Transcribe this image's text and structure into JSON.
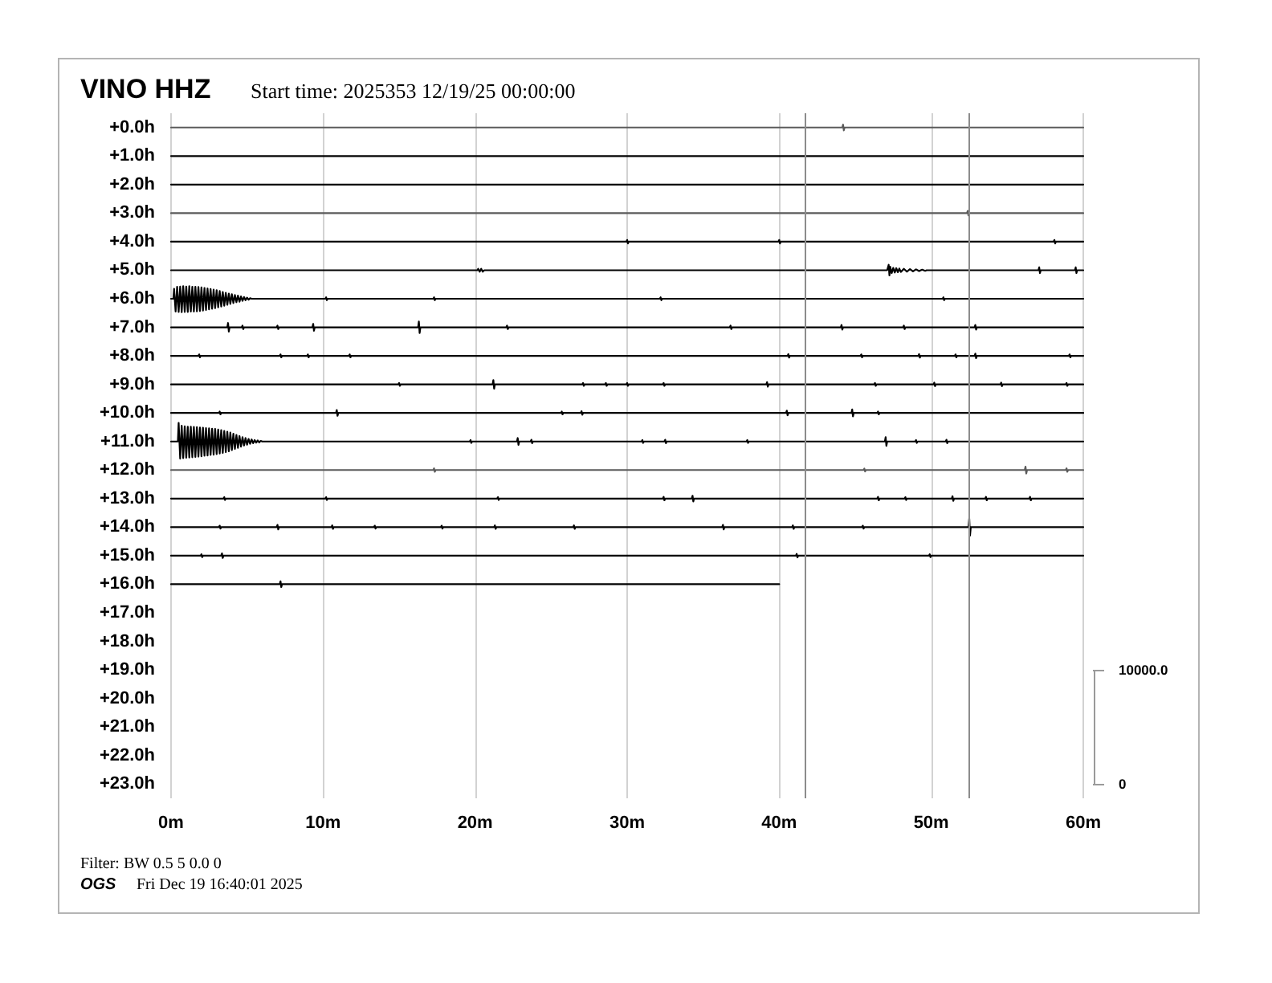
{
  "chart_data": {
    "type": "line",
    "title": "VINO HHZ",
    "subtitle": "Start time: 2025353 12/19/25 00:00:00",
    "annotations": [
      "Filter: BW 0.5 5 0.0 0",
      "OGS",
      "Fri Dec 19 16:40:01 2025"
    ],
    "xlim": [
      0,
      60
    ],
    "xticks": [
      {
        "value": 0,
        "label": "0m"
      },
      {
        "value": 10,
        "label": "10m"
      },
      {
        "value": 20,
        "label": "20m"
      },
      {
        "value": 30,
        "label": "30m"
      },
      {
        "value": 40,
        "label": "40m"
      },
      {
        "value": 50,
        "label": "50m"
      },
      {
        "value": 60,
        "label": "60m"
      }
    ],
    "ylim": [
      23.5,
      -0.5
    ],
    "yticks": [
      {
        "value": 0,
        "label": "+0.0h"
      },
      {
        "value": 1,
        "label": "+1.0h"
      },
      {
        "value": 2,
        "label": "+2.0h"
      },
      {
        "value": 3,
        "label": "+3.0h"
      },
      {
        "value": 4,
        "label": "+4.0h"
      },
      {
        "value": 5,
        "label": "+5.0h"
      },
      {
        "value": 6,
        "label": "+6.0h"
      },
      {
        "value": 7,
        "label": "+7.0h"
      },
      {
        "value": 8,
        "label": "+8.0h"
      },
      {
        "value": 9,
        "label": "+9.0h"
      },
      {
        "value": 10,
        "label": "+10.0h"
      },
      {
        "value": 11,
        "label": "+11.0h"
      },
      {
        "value": 12,
        "label": "+12.0h"
      },
      {
        "value": 13,
        "label": "+13.0h"
      },
      {
        "value": 14,
        "label": "+14.0h"
      },
      {
        "value": 15,
        "label": "+15.0h"
      },
      {
        "value": 16,
        "label": "+16.0h"
      },
      {
        "value": 17,
        "label": "+17.0h"
      },
      {
        "value": 18,
        "label": "+18.0h"
      },
      {
        "value": 19,
        "label": "+19.0h"
      },
      {
        "value": 20,
        "label": "+20.0h"
      },
      {
        "value": 21,
        "label": "+21.0h"
      },
      {
        "value": 22,
        "label": "+22.0h"
      },
      {
        "value": 23,
        "label": "+23.0h"
      }
    ],
    "y2lim": [
      -1250,
      58750
    ],
    "y2ticks": [
      0,
      {
        "value": 10000,
        "label": "10000.0"
      }
    ],
    "grid": "x",
    "marker": "none",
    "line_style": "solid",
    "ref_lines": [
      {
        "axis": "x",
        "value": 41.7,
        "color": "#8c8c8c"
      },
      {
        "axis": "x",
        "value": 52.5,
        "color": "#8c8c8c"
      }
    ],
    "series": [
      {
        "color": "#5a5a5a",
        "x": [
          0,
          44.15,
          44.2,
          44.25,
          44.3,
          60
        ],
        "values": [
          0,
          0,
          -0.1,
          0.1,
          0,
          0
        ]
      },
      {
        "color": "#000000",
        "x": [
          0,
          60
        ],
        "values": [
          1,
          1
        ]
      },
      {
        "color": "#000000",
        "x": [
          0,
          60
        ],
        "values": [
          2,
          2
        ]
      },
      {
        "color": "#5a5a5a",
        "x": [
          0,
          52.35,
          52.4,
          52.45,
          52.5,
          60
        ],
        "values": [
          3,
          3,
          2.92,
          3.08,
          3,
          3
        ]
      },
      {
        "color": "#000000",
        "x": [
          0,
          29.95,
          30,
          30.05,
          30.1,
          39.95,
          40,
          40.05,
          40.1,
          58.05,
          58.1,
          58.15,
          58.2,
          60
        ],
        "values": [
          4,
          4,
          3.94,
          4.06,
          4,
          4,
          3.94,
          4.06,
          4,
          4,
          3.94,
          4.06,
          4,
          4
        ]
      },
      {
        "color": "#000000",
        "x": [
          0,
          20.15,
          20.2,
          20.3,
          20.4,
          20.5,
          20.6,
          47.1,
          47.2,
          47.25,
          47.3,
          47.4,
          47.5,
          47.6,
          47.7,
          47.8,
          47.9,
          48,
          48.2,
          48.4,
          48.6,
          48.8,
          49,
          49.2,
          49.4,
          49.6,
          49.7,
          57.05,
          57.1,
          57.15,
          57.2,
          59.45,
          59.5,
          59.55,
          59.6,
          60
        ],
        "values": [
          5,
          5,
          4.95,
          5.05,
          4.95,
          5.05,
          5,
          5,
          4.81,
          5.18,
          4.88,
          5.1,
          4.92,
          5.08,
          4.93,
          5.07,
          4.94,
          5.06,
          4.95,
          5.05,
          4.96,
          5.04,
          4.97,
          5.03,
          4.98,
          5.02,
          5,
          5,
          4.9,
          5.1,
          5,
          5,
          4.9,
          5.1,
          5,
          5
        ]
      },
      {
        "color": "#000000",
        "x": [
          0,
          0.15,
          0.2,
          0.3,
          0.4,
          0.5,
          0.6,
          0.7,
          0.8,
          0.9,
          1,
          1.1,
          1.2,
          1.3,
          1.4,
          1.5,
          1.6,
          1.7,
          1.8,
          1.9,
          2,
          2.1,
          2.2,
          2.3,
          2.4,
          2.5,
          2.6,
          2.7,
          2.8,
          2.9,
          3,
          3.1,
          3.2,
          3.3,
          3.4,
          3.5,
          3.6,
          3.7,
          3.8,
          3.9,
          4,
          4.1,
          4.2,
          4.3,
          4.4,
          4.5,
          4.6,
          4.7,
          4.8,
          4.9,
          5,
          5.1,
          5.2,
          5.3,
          10.15,
          10.2,
          10.25,
          10.3,
          17.25,
          17.3,
          17.35,
          17.4,
          32.15,
          32.2,
          32.25,
          32.3,
          50.75,
          50.8,
          50.85,
          50.9,
          60
        ],
        "values": [
          6,
          6,
          5.65,
          6.45,
          5.58,
          6.46,
          5.57,
          6.47,
          5.56,
          6.46,
          5.57,
          6.46,
          5.56,
          6.45,
          5.58,
          6.45,
          5.58,
          6.44,
          5.59,
          6.43,
          5.6,
          6.41,
          5.62,
          6.39,
          5.64,
          6.37,
          5.66,
          6.35,
          5.68,
          6.33,
          5.7,
          6.3,
          5.73,
          6.27,
          5.76,
          6.24,
          5.79,
          6.21,
          5.82,
          6.18,
          5.84,
          6.15,
          5.87,
          6.12,
          5.89,
          6.1,
          5.92,
          6.07,
          5.94,
          6.05,
          5.96,
          6.03,
          5.98,
          6,
          6,
          5.95,
          6.05,
          6,
          6,
          5.95,
          6.05,
          6,
          6,
          5.95,
          6.05,
          6,
          6,
          5.95,
          6.05,
          6,
          6
        ]
      },
      {
        "color": "#000000",
        "x": [
          0,
          3.7,
          3.75,
          3.8,
          3.85,
          4.65,
          4.7,
          4.75,
          4.8,
          6.95,
          7,
          7.05,
          7.1,
          9.3,
          9.35,
          9.4,
          9.45,
          16.25,
          16.3,
          16.35,
          16.4,
          22.05,
          22.1,
          22.15,
          22.2,
          36.75,
          36.8,
          36.85,
          36.9,
          44.05,
          44.1,
          44.15,
          44.2,
          48.15,
          48.2,
          48.25,
          48.3,
          52.85,
          52.9,
          52.95,
          53,
          60
        ],
        "values": [
          7,
          7,
          6.85,
          7.15,
          7,
          7,
          6.94,
          7.06,
          7,
          7,
          6.94,
          7.06,
          7,
          7,
          6.88,
          7.12,
          7,
          7,
          6.8,
          7.2,
          7,
          7,
          6.94,
          7.06,
          7,
          7,
          6.94,
          7.06,
          7,
          7,
          6.92,
          7.08,
          7,
          7,
          6.94,
          7.06,
          7,
          7,
          6.92,
          7.08,
          7,
          7
        ]
      },
      {
        "color": "#000000",
        "x": [
          0,
          1.8,
          1.85,
          1.9,
          1.95,
          7.15,
          7.2,
          7.25,
          7.3,
          8.95,
          9,
          9.05,
          9.1,
          11.7,
          11.75,
          11.8,
          11.85,
          40.55,
          40.6,
          40.65,
          40.7,
          45.35,
          45.4,
          45.45,
          45.5,
          49.15,
          49.2,
          49.25,
          49.3,
          51.55,
          51.6,
          51.65,
          51.7,
          52.85,
          52.9,
          52.95,
          53,
          59.05,
          59.1,
          59.15,
          59.2,
          60
        ],
        "values": [
          8,
          8,
          7.95,
          8.05,
          8,
          8,
          7.95,
          8.05,
          8,
          8,
          7.95,
          8.05,
          8,
          8,
          7.95,
          8.05,
          8,
          8,
          7.94,
          8.06,
          8,
          8,
          7.95,
          8.05,
          8,
          8,
          7.94,
          8.06,
          8,
          8,
          7.95,
          8.05,
          8,
          8,
          7.92,
          8.08,
          8,
          8,
          7.95,
          8.05,
          8,
          8
        ]
      },
      {
        "color": "#000000",
        "x": [
          0,
          14.95,
          15,
          15.05,
          15.1,
          21.15,
          21.2,
          21.25,
          21.3,
          27.05,
          27.1,
          27.15,
          27.2,
          28.55,
          28.6,
          28.65,
          28.7,
          29.95,
          30,
          30.05,
          30.1,
          32.35,
          32.4,
          32.45,
          32.5,
          39.15,
          39.2,
          39.25,
          39.3,
          46.25,
          46.3,
          46.35,
          46.4,
          50.15,
          50.2,
          50.25,
          50.3,
          54.55,
          54.6,
          54.65,
          54.7,
          58.85,
          58.9,
          58.95,
          59,
          60
        ],
        "values": [
          9,
          9,
          8.95,
          9.05,
          9,
          9,
          8.85,
          9.15,
          9,
          9,
          8.95,
          9.05,
          9,
          9,
          8.95,
          9.05,
          9,
          9,
          8.95,
          9.05,
          9,
          9,
          8.95,
          9.05,
          9,
          9,
          8.92,
          9.08,
          9,
          9,
          8.95,
          9.05,
          9,
          9,
          8.94,
          9.06,
          9,
          9,
          8.94,
          9.06,
          9,
          9,
          8.95,
          9.05,
          9,
          9
        ]
      },
      {
        "color": "#000000",
        "x": [
          0,
          3.15,
          3.2,
          3.25,
          3.3,
          10.85,
          10.9,
          10.95,
          11,
          25.65,
          25.7,
          25.75,
          25.8,
          26.95,
          27,
          27.05,
          27.1,
          40.45,
          40.5,
          40.55,
          40.6,
          44.75,
          44.8,
          44.85,
          44.9,
          46.45,
          46.5,
          46.55,
          46.6,
          60
        ],
        "values": [
          10,
          10,
          9.95,
          10.05,
          10,
          10,
          9.9,
          10.1,
          10,
          10,
          9.95,
          10.05,
          10,
          10,
          9.94,
          10.06,
          10,
          10,
          9.92,
          10.08,
          10,
          10,
          9.88,
          10.12,
          10,
          10,
          9.95,
          10.05,
          10,
          10
        ]
      },
      {
        "color": "#000000",
        "x": [
          0,
          0.45,
          0.5,
          0.6,
          0.7,
          0.8,
          0.9,
          1,
          1.1,
          1.2,
          1.3,
          1.4,
          1.5,
          1.6,
          1.7,
          1.8,
          1.9,
          2,
          2.1,
          2.2,
          2.3,
          2.4,
          2.5,
          2.6,
          2.7,
          2.8,
          2.9,
          3,
          3.1,
          3.2,
          3.3,
          3.4,
          3.5,
          3.6,
          3.7,
          3.8,
          3.9,
          4,
          4.1,
          4.2,
          4.3,
          4.4,
          4.5,
          4.6,
          4.7,
          4.8,
          4.9,
          5,
          5.1,
          5.2,
          5.3,
          5.4,
          5.5,
          5.6,
          5.7,
          5.8,
          5.9,
          6,
          19.65,
          19.7,
          19.75,
          19.8,
          22.75,
          22.8,
          22.85,
          22.9,
          23.65,
          23.7,
          23.75,
          23.8,
          30.95,
          31,
          31.05,
          31.1,
          32.45,
          32.5,
          32.55,
          32.6,
          37.85,
          37.9,
          37.95,
          38,
          46.95,
          47,
          47.05,
          47.1,
          48.95,
          49,
          49.05,
          49.1,
          50.95,
          51,
          51.05,
          51.1,
          60
        ],
        "values": [
          11,
          11,
          10.35,
          11.6,
          10.45,
          11.58,
          10.47,
          11.57,
          10.48,
          11.56,
          10.48,
          11.55,
          10.49,
          11.54,
          10.5,
          11.53,
          10.51,
          11.52,
          10.52,
          11.5,
          10.53,
          11.49,
          10.54,
          11.47,
          10.55,
          11.46,
          10.56,
          11.44,
          10.58,
          11.42,
          10.6,
          11.4,
          10.63,
          11.37,
          10.66,
          11.34,
          10.69,
          11.3,
          10.73,
          11.26,
          10.77,
          11.22,
          10.81,
          11.18,
          10.85,
          11.14,
          10.88,
          11.11,
          10.91,
          11.08,
          10.93,
          11.06,
          10.95,
          11.04,
          10.96,
          11.03,
          10.98,
          11,
          11,
          10.95,
          11.05,
          11,
          11,
          10.88,
          11.12,
          11,
          11,
          10.94,
          11.06,
          11,
          11,
          10.95,
          11.05,
          11,
          11,
          10.94,
          11.06,
          11,
          11,
          10.95,
          11.05,
          11,
          11,
          10.85,
          11.15,
          11,
          11,
          10.95,
          11.05,
          11,
          11,
          10.94,
          11.06,
          11,
          11
        ]
      },
      {
        "color": "#5a5a5a",
        "x": [
          0,
          17.25,
          17.3,
          17.35,
          17.4,
          45.55,
          45.6,
          45.65,
          45.7,
          56.15,
          56.2,
          56.25,
          56.3,
          58.85,
          58.9,
          58.95,
          59,
          60
        ],
        "values": [
          12,
          12,
          11.94,
          12.06,
          12,
          12,
          11.95,
          12.05,
          12,
          12,
          11.88,
          12.12,
          12,
          12,
          11.94,
          12.06,
          12,
          12
        ]
      },
      {
        "color": "#000000",
        "x": [
          0,
          3.45,
          3.5,
          3.55,
          3.6,
          10.15,
          10.2,
          10.25,
          10.3,
          21.45,
          21.5,
          21.55,
          21.6,
          32.35,
          32.4,
          32.45,
          32.5,
          34.25,
          34.3,
          34.35,
          34.4,
          46.45,
          46.5,
          46.55,
          46.6,
          48.25,
          48.3,
          48.35,
          48.4,
          51.35,
          51.4,
          51.45,
          51.5,
          53.55,
          53.6,
          53.65,
          53.7,
          56.45,
          56.5,
          56.55,
          56.6,
          60
        ],
        "values": [
          13,
          13,
          12.95,
          13.05,
          13,
          13,
          12.95,
          13.05,
          13,
          13,
          12.95,
          13.05,
          13,
          13,
          12.94,
          13.06,
          13,
          13,
          12.9,
          13.1,
          13,
          13,
          12.94,
          13.06,
          13,
          13,
          12.95,
          13.05,
          13,
          13,
          12.92,
          13.08,
          13,
          13,
          12.94,
          13.06,
          13,
          13,
          12.94,
          13.06,
          13,
          13
        ]
      },
      {
        "color": "#000000",
        "x": [
          0,
          3.15,
          3.2,
          3.25,
          3.3,
          6.95,
          7,
          7.05,
          7.1,
          10.55,
          10.6,
          10.65,
          10.7,
          13.35,
          13.4,
          13.45,
          13.5,
          17.75,
          17.8,
          17.85,
          17.9,
          21.25,
          21.3,
          21.35,
          21.4,
          26.45,
          26.5,
          26.55,
          26.6,
          36.25,
          36.3,
          36.35,
          36.4,
          40.85,
          40.9,
          40.95,
          41,
          45.45,
          45.5,
          45.55,
          45.6,
          52.45,
          52.5,
          52.55,
          52.6,
          60
        ],
        "values": [
          14,
          14,
          13.95,
          14.05,
          14,
          14,
          13.92,
          14.08,
          14,
          14,
          13.94,
          14.06,
          14,
          14,
          13.95,
          14.05,
          14,
          14,
          13.95,
          14.05,
          14,
          14,
          13.94,
          14.06,
          14,
          14,
          13.94,
          14.06,
          14,
          14,
          13.92,
          14.08,
          14,
          14,
          13.94,
          14.06,
          14,
          14,
          13.95,
          14.05,
          14,
          14,
          13.7,
          14.3,
          14,
          14
        ]
      },
      {
        "color": "#000000",
        "x": [
          0,
          1.95,
          2,
          2.05,
          2.1,
          3.3,
          3.35,
          3.4,
          3.45,
          41.1,
          41.15,
          41.2,
          41.25,
          49.85,
          49.9,
          49.95,
          50,
          60
        ],
        "values": [
          15,
          15,
          14.95,
          15.05,
          15,
          15,
          14.92,
          15.08,
          15,
          15,
          14.94,
          15.06,
          15,
          15,
          14.95,
          15.05,
          15,
          15
        ]
      },
      {
        "color": "#000000",
        "x": [
          0,
          7.15,
          7.2,
          7.25,
          7.3,
          40
        ],
        "values": [
          16,
          16,
          15.9,
          16.1,
          16,
          16
        ]
      }
    ]
  }
}
